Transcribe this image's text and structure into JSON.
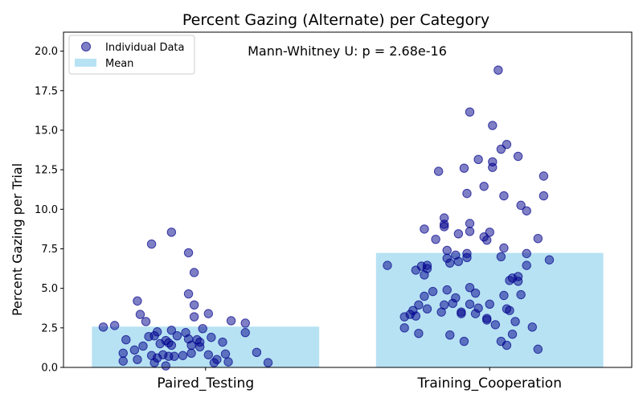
{
  "chart_data": {
    "type": "bar",
    "title": "Percent Gazing (Alternate) per Category",
    "xlabel": "",
    "ylabel": "Percent Gazing per Trial",
    "annotation": "Mann-Whitney U: p = 2.68e-16",
    "categories": [
      "Paired_Testing",
      "Training_Cooperation"
    ],
    "ylim": [
      0,
      21.2
    ],
    "yticks": [
      "0.0",
      "2.5",
      "5.0",
      "7.5",
      "10.0",
      "12.5",
      "15.0",
      "17.5",
      "20.0"
    ],
    "grid": false,
    "legend_position": "top-left",
    "legend": [
      {
        "label": "Individual Data",
        "kind": "marker"
      },
      {
        "label": "Mean",
        "kind": "patch"
      }
    ],
    "series": [
      {
        "name": "Mean",
        "kind": "bar",
        "values": [
          2.58,
          7.24
        ]
      },
      {
        "name": "Individual Data",
        "kind": "scatter",
        "points": [
          {
            "x": -0.36,
            "y": 2.55
          },
          {
            "x": -0.32,
            "y": 2.65
          },
          {
            "x": -0.29,
            "y": 0.4
          },
          {
            "x": -0.29,
            "y": 0.9
          },
          {
            "x": -0.28,
            "y": 1.75
          },
          {
            "x": -0.25,
            "y": 1.1
          },
          {
            "x": -0.24,
            "y": 0.5
          },
          {
            "x": -0.23,
            "y": 3.35
          },
          {
            "x": -0.24,
            "y": 4.2
          },
          {
            "x": -0.22,
            "y": 1.35
          },
          {
            "x": -0.21,
            "y": 2.9
          },
          {
            "x": -0.2,
            "y": 1.95
          },
          {
            "x": -0.19,
            "y": 7.8
          },
          {
            "x": -0.19,
            "y": 0.75
          },
          {
            "x": -0.18,
            "y": 2.0
          },
          {
            "x": -0.18,
            "y": 0.3
          },
          {
            "x": -0.17,
            "y": 2.25
          },
          {
            "x": -0.17,
            "y": 0.6
          },
          {
            "x": -0.16,
            "y": 1.5
          },
          {
            "x": -0.15,
            "y": 0.8
          },
          {
            "x": -0.14,
            "y": 1.7
          },
          {
            "x": -0.14,
            "y": 0.1
          },
          {
            "x": -0.13,
            "y": 1.55
          },
          {
            "x": -0.13,
            "y": 0.7
          },
          {
            "x": -0.12,
            "y": 8.55
          },
          {
            "x": -0.12,
            "y": 2.35
          },
          {
            "x": -0.12,
            "y": 1.4
          },
          {
            "x": -0.11,
            "y": 0.7
          },
          {
            "x": -0.1,
            "y": 2.0
          },
          {
            "x": -0.08,
            "y": 0.75
          },
          {
            "x": -0.07,
            "y": 2.2
          },
          {
            "x": -0.06,
            "y": 7.25
          },
          {
            "x": -0.06,
            "y": 4.65
          },
          {
            "x": -0.06,
            "y": 1.8
          },
          {
            "x": -0.05,
            "y": 1.4
          },
          {
            "x": -0.05,
            "y": 0.9
          },
          {
            "x": -0.04,
            "y": 6.0
          },
          {
            "x": -0.04,
            "y": 3.2
          },
          {
            "x": -0.04,
            "y": 3.95
          },
          {
            "x": -0.03,
            "y": 1.75
          },
          {
            "x": -0.02,
            "y": 1.3
          },
          {
            "x": -0.02,
            "y": 1.6
          },
          {
            "x": -0.01,
            "y": 2.45
          },
          {
            "x": 0.01,
            "y": 0.8
          },
          {
            "x": 0.01,
            "y": 3.4
          },
          {
            "x": 0.02,
            "y": 1.9
          },
          {
            "x": 0.03,
            "y": 0.3
          },
          {
            "x": 0.04,
            "y": 0.5
          },
          {
            "x": 0.06,
            "y": 1.6
          },
          {
            "x": 0.07,
            "y": 0.85
          },
          {
            "x": 0.08,
            "y": 0.35
          },
          {
            "x": 0.09,
            "y": 2.95
          },
          {
            "x": 0.14,
            "y": 2.8
          },
          {
            "x": 0.14,
            "y": 2.2
          },
          {
            "x": 0.18,
            "y": 0.95
          },
          {
            "x": 0.22,
            "y": 0.3
          },
          {
            "x": 0.64,
            "y": 6.45
          },
          {
            "x": 0.7,
            "y": 3.2
          },
          {
            "x": 0.7,
            "y": 2.5
          },
          {
            "x": 0.72,
            "y": 3.35
          },
          {
            "x": 0.73,
            "y": 3.6
          },
          {
            "x": 0.74,
            "y": 6.15
          },
          {
            "x": 0.74,
            "y": 3.25
          },
          {
            "x": 0.75,
            "y": 2.15
          },
          {
            "x": 0.75,
            "y": 3.95
          },
          {
            "x": 0.76,
            "y": 6.4
          },
          {
            "x": 0.77,
            "y": 4.5
          },
          {
            "x": 0.78,
            "y": 6.25
          },
          {
            "x": 0.78,
            "y": 6.45
          },
          {
            "x": 0.77,
            "y": 5.85
          },
          {
            "x": 0.77,
            "y": 8.75
          },
          {
            "x": 0.78,
            "y": 3.7
          },
          {
            "x": 0.8,
            "y": 4.8
          },
          {
            "x": 0.81,
            "y": 8.1
          },
          {
            "x": 0.82,
            "y": 12.4
          },
          {
            "x": 0.83,
            "y": 3.5
          },
          {
            "x": 0.84,
            "y": 3.95
          },
          {
            "x": 0.84,
            "y": 9.45
          },
          {
            "x": 0.84,
            "y": 9.05
          },
          {
            "x": 0.84,
            "y": 8.9
          },
          {
            "x": 0.85,
            "y": 4.9
          },
          {
            "x": 0.85,
            "y": 6.9
          },
          {
            "x": 0.85,
            "y": 7.4
          },
          {
            "x": 0.86,
            "y": 2.05
          },
          {
            "x": 0.86,
            "y": 6.6
          },
          {
            "x": 0.87,
            "y": 4.05
          },
          {
            "x": 0.88,
            "y": 4.4
          },
          {
            "x": 0.88,
            "y": 7.1
          },
          {
            "x": 0.89,
            "y": 6.7
          },
          {
            "x": 0.89,
            "y": 8.45
          },
          {
            "x": 0.9,
            "y": 3.5
          },
          {
            "x": 0.9,
            "y": 3.4
          },
          {
            "x": 0.91,
            "y": 12.6
          },
          {
            "x": 0.91,
            "y": 1.65
          },
          {
            "x": 0.92,
            "y": 11.0
          },
          {
            "x": 0.92,
            "y": 7.2
          },
          {
            "x": 0.92,
            "y": 6.95
          },
          {
            "x": 0.93,
            "y": 16.15
          },
          {
            "x": 0.93,
            "y": 8.6
          },
          {
            "x": 0.93,
            "y": 9.1
          },
          {
            "x": 0.93,
            "y": 4.0
          },
          {
            "x": 0.93,
            "y": 5.05
          },
          {
            "x": 0.95,
            "y": 3.4
          },
          {
            "x": 0.95,
            "y": 4.7
          },
          {
            "x": 0.96,
            "y": 13.15
          },
          {
            "x": 0.96,
            "y": 3.75
          },
          {
            "x": 0.98,
            "y": 11.45
          },
          {
            "x": 0.98,
            "y": 8.25
          },
          {
            "x": 0.99,
            "y": 8.05
          },
          {
            "x": 0.99,
            "y": 3.1
          },
          {
            "x": 0.99,
            "y": 3.0
          },
          {
            "x": 1.0,
            "y": 4.0
          },
          {
            "x": 1.01,
            "y": 13.0
          },
          {
            "x": 1.01,
            "y": 12.65
          },
          {
            "x": 1.01,
            "y": 15.3
          },
          {
            "x": 1.0,
            "y": 8.55
          },
          {
            "x": 1.02,
            "y": 2.7
          },
          {
            "x": 1.03,
            "y": 18.8
          },
          {
            "x": 1.04,
            "y": 7.0
          },
          {
            "x": 1.04,
            "y": 1.65
          },
          {
            "x": 1.04,
            "y": 13.8
          },
          {
            "x": 1.05,
            "y": 10.85
          },
          {
            "x": 1.05,
            "y": 7.55
          },
          {
            "x": 1.05,
            "y": 4.55
          },
          {
            "x": 1.06,
            "y": 14.1
          },
          {
            "x": 1.06,
            "y": 3.7
          },
          {
            "x": 1.06,
            "y": 1.4
          },
          {
            "x": 1.07,
            "y": 5.5
          },
          {
            "x": 1.07,
            "y": 3.6
          },
          {
            "x": 1.08,
            "y": 5.65
          },
          {
            "x": 1.08,
            "y": 2.1
          },
          {
            "x": 1.09,
            "y": 2.9
          },
          {
            "x": 1.1,
            "y": 13.35
          },
          {
            "x": 1.1,
            "y": 5.45
          },
          {
            "x": 1.1,
            "y": 5.75
          },
          {
            "x": 1.11,
            "y": 10.25
          },
          {
            "x": 1.11,
            "y": 4.6
          },
          {
            "x": 1.13,
            "y": 9.9
          },
          {
            "x": 1.13,
            "y": 6.45
          },
          {
            "x": 1.13,
            "y": 7.2
          },
          {
            "x": 1.15,
            "y": 2.55
          },
          {
            "x": 1.17,
            "y": 8.15
          },
          {
            "x": 1.17,
            "y": 1.15
          },
          {
            "x": 1.19,
            "y": 10.85
          },
          {
            "x": 1.19,
            "y": 12.1
          },
          {
            "x": 1.21,
            "y": 6.8
          }
        ]
      }
    ],
    "colors": {
      "bar_fill": "#87ceeb",
      "bar_alpha": 0.6,
      "marker_fill": "#00008b",
      "marker_alpha": 0.5,
      "marker_edge": "#00008b"
    }
  }
}
